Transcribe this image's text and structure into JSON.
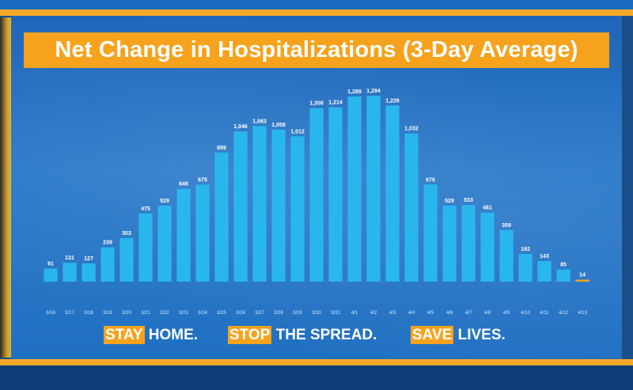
{
  "chart_data": {
    "type": "bar",
    "title": "Net Change in Hospitalizations (3-Day Average)",
    "xlabel": "",
    "ylabel": "",
    "categories": [
      "3/16",
      "3/17",
      "3/18",
      "3/19",
      "3/20",
      "3/21",
      "3/22",
      "3/23",
      "3/24",
      "3/25",
      "3/26",
      "3/27",
      "3/28",
      "3/29",
      "3/30",
      "3/31",
      "4/1",
      "4/2",
      "4/3",
      "4/4",
      "4/5",
      "4/6",
      "4/7",
      "4/8",
      "4/9",
      "4/10",
      "4/11",
      "4/12",
      "4/13"
    ],
    "values": [
      91,
      131,
      127,
      239,
      303,
      475,
      529,
      646,
      675,
      899,
      1046,
      1083,
      1059,
      1012,
      1208,
      1214,
      1289,
      1294,
      1226,
      1032,
      676,
      529,
      533,
      481,
      359,
      192,
      143,
      85,
      14
    ],
    "value_labels": [
      "91",
      "131",
      "127",
      "239",
      "303",
      "475",
      "529",
      "646",
      "675",
      "899",
      "1,046",
      "1,083",
      "1,059",
      "1,012",
      "1,208",
      "1,214",
      "1,289",
      "1,294",
      "1,226",
      "1,032",
      "676",
      "529",
      "533",
      "481",
      "359",
      "192",
      "143",
      "85",
      "14"
    ],
    "ylim": [
      0,
      1300
    ],
    "grid": false,
    "bar_color": "#29b6ec",
    "highlight_color": "#f6a21c",
    "highlight_index": 28
  },
  "slogan": {
    "stay_hl": "STAY",
    "stay_rest": " HOME.",
    "stop_hl": "STOP",
    "stop_rest": " THE SPREAD.",
    "save_hl": "SAVE",
    "save_rest": " LIVES."
  }
}
